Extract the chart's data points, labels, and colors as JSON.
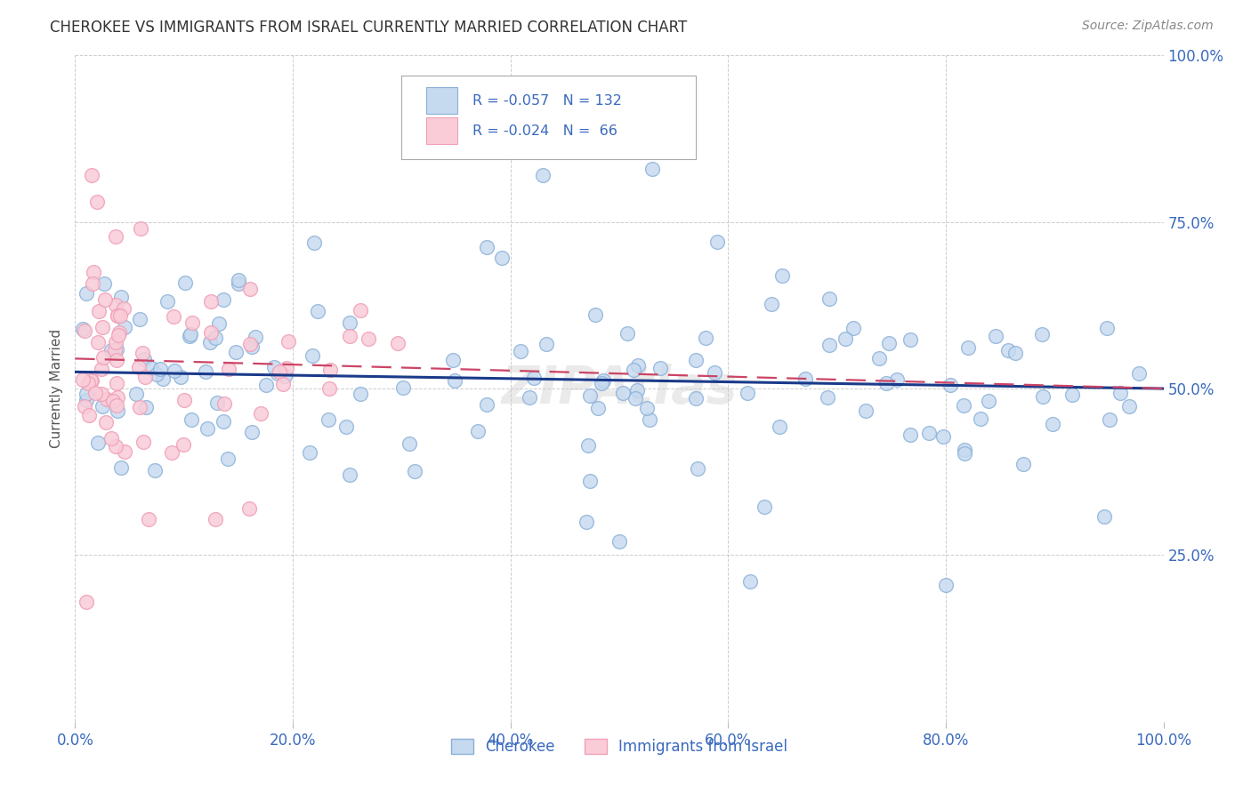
{
  "title": "CHEROKEE VS IMMIGRANTS FROM ISRAEL CURRENTLY MARRIED CORRELATION CHART",
  "source": "Source: ZipAtlas.com",
  "ylabel": "Currently Married",
  "blue_color": "#8ab0d8",
  "pink_color": "#f0a0b8",
  "blue_fill": "#c5d9ef",
  "pink_fill": "#f9ccd8",
  "trend_blue": "#1a3a8a",
  "trend_pink": "#cc4466",
  "axis_color": "#3a6abf",
  "grid_color": "#c8c8c8",
  "title_color": "#333333",
  "watermark": "ZIPAtlas",
  "blue_R": -0.057,
  "blue_N": 132,
  "pink_R": -0.024,
  "pink_N": 66,
  "blue_intercept": 0.525,
  "blue_slope": -0.025,
  "pink_intercept": 0.545,
  "pink_slope": -0.045
}
